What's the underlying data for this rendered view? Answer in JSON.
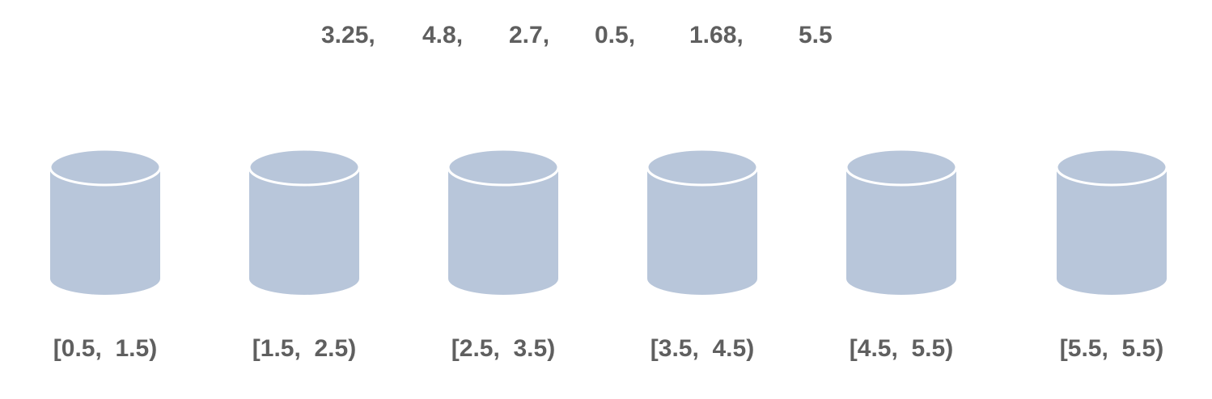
{
  "values": [
    {
      "text": "3.25,"
    },
    {
      "text": "4.8,"
    },
    {
      "text": "2.7,"
    },
    {
      "text": "0.5,"
    },
    {
      "text": "1.68,"
    },
    {
      "text": "5.5"
    }
  ],
  "buckets": [
    {
      "label": "[0.5,  1.5)"
    },
    {
      "label": "[1.5,  2.5)"
    },
    {
      "label": "[2.5,  3.5)"
    },
    {
      "label": "[3.5,  4.5)"
    },
    {
      "label": "[4.5,  5.5)"
    },
    {
      "label": "[5.5,  5.5)"
    }
  ],
  "colors": {
    "bucket_fill": "#b8c6da",
    "bucket_rim": "#ffffff",
    "text": "#5f5f5f"
  },
  "icons": {
    "bucket": "cylinder-icon"
  }
}
